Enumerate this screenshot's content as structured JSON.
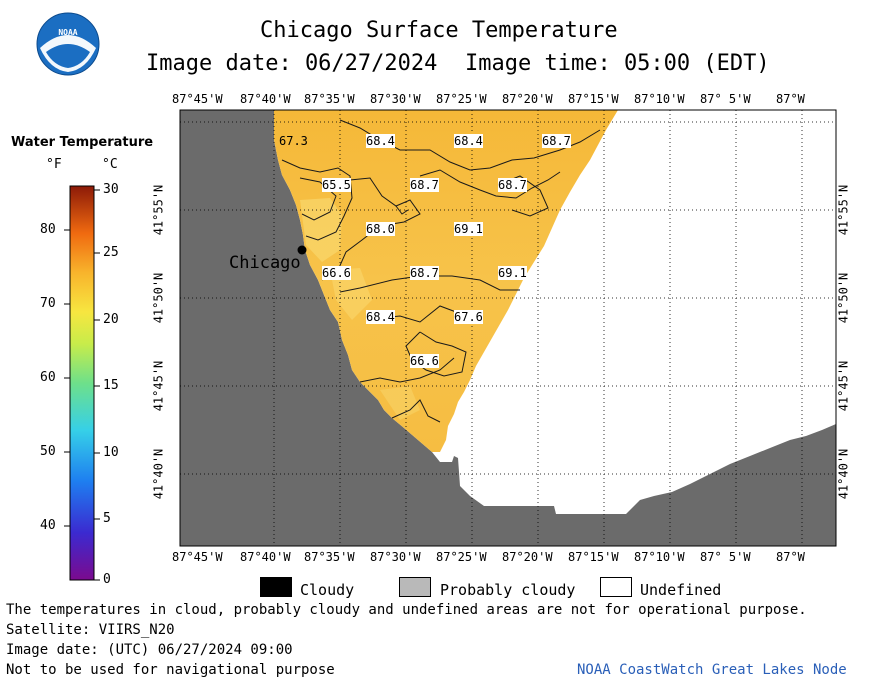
{
  "logo": {
    "text": "NOAA"
  },
  "header": {
    "title": "Chicago Surface Temperature",
    "date_line": "Image date: 06/27/2024",
    "time_line": "Image time: 05:00 (EDT)"
  },
  "legend": {
    "title": "Water Temperature",
    "unit_f": "°F",
    "unit_c": "°C",
    "f_ticks": [
      "80",
      "70",
      "60",
      "50",
      "40"
    ],
    "c_ticks": [
      "30",
      "25",
      "20",
      "15",
      "10",
      "5",
      "0"
    ]
  },
  "map": {
    "lon_labels": [
      "87°45'W",
      "87°40'W",
      "87°35'W",
      "87°30'W",
      "87°25'W",
      "87°20'W",
      "87°15'W",
      "87°10'W",
      "87° 5'W",
      "87°W"
    ],
    "lat_labels": [
      "41°55'N",
      "41°50'N",
      "41°45'N",
      "41°40'N"
    ],
    "city_label": "Chicago",
    "temperature_labels": [
      "67.3",
      "68.4",
      "68.4",
      "68.7",
      "65.5",
      "68.7",
      "68.7",
      "68.0",
      "69.1",
      "66.6",
      "68.7",
      "69.1",
      "68.4",
      "67.6",
      "66.6"
    ],
    "colors": {
      "land": "#6b6b6b",
      "water_warm": "#f7c040",
      "water_light": "#fad76a",
      "undefined": "#ffffff"
    }
  },
  "key": {
    "cloudy": "Cloudy",
    "probably_cloudy": "Probably cloudy",
    "undefined": "Undefined"
  },
  "footer": {
    "note": "The temperatures in cloud, probably cloudy and undefined areas are not for operational purpose.",
    "satellite": "Satellite: VIIRS_N20",
    "utc_date": "Image date: (UTC) 06/27/2024  09:00",
    "nav_warning": "Not to be used for navigational purpose",
    "credit": "NOAA CoastWatch Great Lakes Node"
  }
}
